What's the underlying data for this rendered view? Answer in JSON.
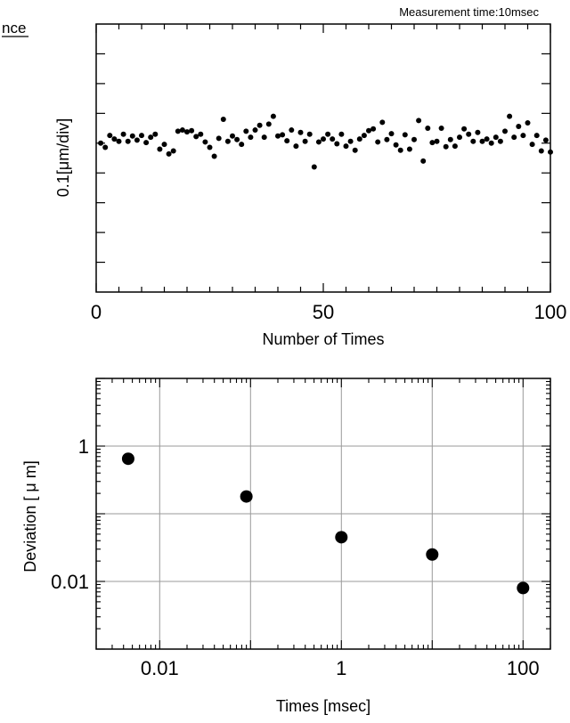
{
  "figure": {
    "cutoff_label": "nce",
    "measurement_note": "Measurement time:10msec"
  },
  "chart_data": [
    {
      "type": "scatter",
      "title": "",
      "xlabel": "Number of Times",
      "ylabel": "0.1[μm/div]",
      "xlim": [
        0,
        100
      ],
      "ylim": [
        -0.25,
        0.2
      ],
      "x_ticks": [
        0,
        50,
        100
      ],
      "x_tick_labels": [
        "0",
        "50",
        "100"
      ],
      "y_minor_step": 0.05,
      "grid": false,
      "series": [
        {
          "values_x": [
            1,
            2,
            3,
            4,
            5,
            6,
            7,
            8,
            9,
            10,
            11,
            12,
            13,
            14,
            15,
            16,
            17,
            18,
            19,
            20,
            21,
            22,
            23,
            24,
            25,
            26,
            27,
            28,
            29,
            30,
            31,
            32,
            33,
            34,
            35,
            36,
            37,
            38,
            39,
            40,
            41,
            42,
            43,
            44,
            45,
            46,
            47,
            48,
            49,
            50,
            51,
            52,
            53,
            54,
            55,
            56,
            57,
            58,
            59,
            60,
            61,
            62,
            63,
            64,
            65,
            66,
            67,
            68,
            69,
            70,
            71,
            72,
            73,
            74,
            75,
            76,
            77,
            78,
            79,
            80,
            81,
            82,
            83,
            84,
            85,
            86,
            87,
            88,
            89,
            90,
            91,
            92,
            93,
            94,
            95,
            96,
            97,
            98,
            99,
            100
          ],
          "values_y": [
            0.0,
            -0.007,
            0.013,
            0.007,
            0.003,
            0.015,
            0.003,
            0.012,
            0.005,
            0.013,
            0.001,
            0.01,
            0.015,
            -0.01,
            -0.002,
            -0.018,
            -0.013,
            0.02,
            0.022,
            0.019,
            0.021,
            0.011,
            0.015,
            0.002,
            -0.007,
            -0.022,
            0.008,
            0.04,
            0.003,
            0.012,
            0.006,
            -0.002,
            0.02,
            0.01,
            0.022,
            0.03,
            0.01,
            0.032,
            0.045,
            0.012,
            0.014,
            0.004,
            0.022,
            -0.005,
            0.018,
            0.003,
            0.015,
            -0.04,
            0.002,
            0.007,
            0.015,
            0.007,
            -0.001,
            0.015,
            -0.005,
            0.003,
            -0.012,
            0.007,
            0.013,
            0.021,
            0.024,
            0.002,
            0.035,
            0.006,
            0.016,
            -0.003,
            -0.012,
            0.014,
            -0.01,
            0.006,
            0.038,
            -0.03,
            0.025,
            0.001,
            0.003,
            0.025,
            -0.006,
            0.006,
            -0.005,
            0.01,
            0.024,
            0.015,
            0.003,
            0.018,
            0.003,
            0.007,
            0.0,
            0.01,
            0.003,
            0.02,
            0.045,
            0.01,
            0.028,
            0.013,
            0.034,
            -0.002,
            0.013,
            -0.013,
            0.005,
            -0.015
          ]
        }
      ]
    },
    {
      "type": "scatter",
      "title": "",
      "xlabel": "Times [msec]",
      "ylabel": "Deviation [ μ m]",
      "x_scale": "log",
      "y_scale": "log",
      "xlim": [
        0.002,
        200
      ],
      "ylim": [
        0.001,
        10
      ],
      "x_ticks": [
        0.01,
        1,
        100
      ],
      "x_tick_labels": [
        "0.01",
        "1",
        "100"
      ],
      "y_ticks": [
        0.01,
        1
      ],
      "y_tick_labels": [
        "0.01",
        "1"
      ],
      "grid": true,
      "series": [
        {
          "x": [
            0.0045,
            0.09,
            1,
            10,
            100
          ],
          "y": [
            0.65,
            0.18,
            0.045,
            0.025,
            0.008
          ]
        }
      ]
    }
  ]
}
